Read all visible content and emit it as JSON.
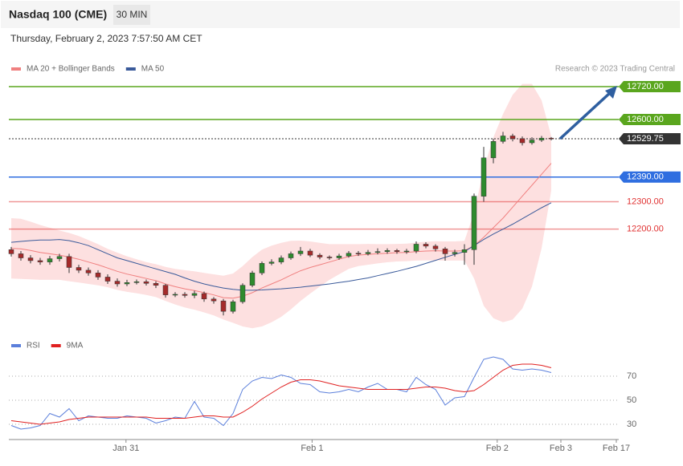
{
  "header": {
    "title": "Nasdaq 100 (CME)",
    "timeframe": "30 MIN",
    "datetime": "Thursday, February 2, 2023 7:57:50 AM CET",
    "copyright": "Research © 2023 Trading Central"
  },
  "chart_data": [
    {
      "type": "candlestick",
      "xlim": [
        -0.25,
        63
      ],
      "ylim": [
        11820,
        12760
      ],
      "candles": {
        "up_color": "#2e8b2e",
        "down_color": "#a52a2a",
        "open": [
          12125,
          12110,
          12095,
          12085,
          12080,
          12092,
          12100,
          12060,
          12050,
          12040,
          12025,
          12010,
          12000,
          12005,
          12008,
          12002,
          11995,
          11960,
          11962,
          11958,
          11965,
          11945,
          11938,
          11900,
          11935,
          11995,
          12040,
          12075,
          12080,
          12095,
          12110,
          12120,
          12105,
          12098,
          12095,
          12102,
          12112,
          12110,
          12115,
          12118,
          12122,
          12118,
          12120,
          12145,
          12138,
          12128,
          12110,
          12115,
          12125,
          12320,
          12460,
          12520,
          12540,
          12530,
          12515,
          12525,
          12532
        ],
        "high": [
          12135,
          12120,
          12105,
          12095,
          12102,
          12110,
          12110,
          12070,
          12060,
          12050,
          12035,
          12020,
          12015,
          12016,
          12016,
          12010,
          12000,
          11970,
          11970,
          11975,
          11972,
          11952,
          11945,
          11942,
          12002,
          12048,
          12082,
          12090,
          12104,
          12118,
          12135,
          12128,
          12112,
          12104,
          12110,
          12120,
          12120,
          12124,
          12130,
          12130,
          12128,
          12128,
          12155,
          12152,
          12145,
          12135,
          12125,
          12145,
          12330,
          12500,
          12530,
          12555,
          12548,
          12538,
          12535,
          12540,
          12536
        ],
        "low": [
          12100,
          12085,
          12075,
          12070,
          12070,
          12082,
          12040,
          12040,
          12030,
          12015,
          12000,
          11990,
          11992,
          11998,
          11994,
          11985,
          11950,
          11952,
          11950,
          11948,
          11935,
          11928,
          11885,
          11892,
          11928,
          11988,
          12032,
          12068,
          12072,
          12088,
          12102,
          12098,
          12090,
          12088,
          12088,
          12096,
          12102,
          12104,
          12108,
          12110,
          12110,
          12110,
          12112,
          12130,
          12118,
          12085,
          12100,
          12070,
          12070,
          12300,
          12440,
          12512,
          12520,
          12505,
          12508,
          12518,
          12524
        ],
        "close": [
          12110,
          12095,
          12085,
          12080,
          12092,
          12100,
          12060,
          12050,
          12040,
          12025,
          12010,
          12000,
          12005,
          12008,
          12002,
          11995,
          11960,
          11962,
          11958,
          11965,
          11945,
          11938,
          11900,
          11935,
          11995,
          12040,
          12075,
          12080,
          12095,
          12110,
          12120,
          12105,
          12098,
          12095,
          12102,
          12112,
          12110,
          12115,
          12118,
          12122,
          12118,
          12120,
          12145,
          12138,
          12128,
          12110,
          12115,
          12125,
          12320,
          12460,
          12520,
          12540,
          12530,
          12515,
          12525,
          12532,
          12530
        ]
      },
      "series": [
        {
          "name": "MA 20 + Bollinger Bands",
          "color": "#f08080",
          "band_color": "#fde0e0",
          "values": [
            12130,
            12128,
            12122,
            12115,
            12110,
            12105,
            12098,
            12090,
            12080,
            12070,
            12058,
            12046,
            12036,
            12028,
            12020,
            12012,
            12000,
            11990,
            11982,
            11976,
            11968,
            11960,
            11950,
            11948,
            11955,
            11968,
            11985,
            12000,
            12015,
            12032,
            12048,
            12060,
            12070,
            12080,
            12090,
            12100,
            12105,
            12108,
            12110,
            12112,
            12114,
            12115,
            12118,
            12120,
            12121,
            12120,
            12120,
            12121,
            12140,
            12170,
            12205,
            12240,
            12280,
            12320,
            12360,
            12400,
            12440
          ],
          "upper": [
            12240,
            12238,
            12227,
            12215,
            12205,
            12195,
            12186,
            12175,
            12160,
            12145,
            12128,
            12114,
            12101,
            12090,
            12080,
            12072,
            12062,
            12055,
            12050,
            12046,
            12040,
            12035,
            12030,
            12038,
            12065,
            12098,
            12125,
            12140,
            12150,
            12157,
            12158,
            12155,
            12150,
            12145,
            12145,
            12145,
            12145,
            12146,
            12145,
            12145,
            12146,
            12147,
            12151,
            12154,
            12156,
            12155,
            12155,
            12157,
            12260,
            12420,
            12535,
            12620,
            12690,
            12730,
            12730,
            12670,
            12540
          ],
          "lower": [
            12020,
            12018,
            12017,
            12015,
            12015,
            12015,
            12010,
            12005,
            12000,
            11995,
            11988,
            11978,
            11971,
            11966,
            11960,
            11952,
            11938,
            11925,
            11914,
            11906,
            11896,
            11885,
            11870,
            11858,
            11845,
            11838,
            11845,
            11860,
            11880,
            11907,
            11938,
            11965,
            11990,
            12015,
            12035,
            12055,
            12065,
            12070,
            12075,
            12079,
            12082,
            12083,
            12085,
            12086,
            12086,
            12085,
            12085,
            12085,
            12020,
            11920,
            11875,
            11860,
            11870,
            11910,
            11990,
            12130,
            12340
          ]
        },
        {
          "name": "MA 50",
          "color": "#3a5a9a",
          "values": [
            12152,
            12155,
            12158,
            12160,
            12160,
            12162,
            12158,
            12150,
            12140,
            12125,
            12110,
            12095,
            12085,
            12075,
            12065,
            12055,
            12045,
            12035,
            12022,
            12010,
            12000,
            11992,
            11985,
            11980,
            11977,
            11977,
            11978,
            11980,
            11982,
            11985,
            11988,
            11992,
            11996,
            12000,
            12005,
            12010,
            12016,
            12022,
            12030,
            12038,
            12046,
            12055,
            12064,
            12075,
            12086,
            12097,
            12108,
            12118,
            12140,
            12162,
            12182,
            12200,
            12218,
            12238,
            12258,
            12278,
            12296
          ]
        }
      ],
      "levels": [
        {
          "value": 12720,
          "label": "12720.00",
          "color": "#5aa61e",
          "label_style": "box",
          "line": "solid"
        },
        {
          "value": 12600,
          "label": "12600.00",
          "color": "#5aa61e",
          "label_style": "box",
          "line": "solid"
        },
        {
          "value": 12529.75,
          "label": "12529.75",
          "color": "#333333",
          "label_style": "box",
          "line": "dotted"
        },
        {
          "value": 12390,
          "label": "12390.00",
          "color": "#2f6ee0",
          "label_style": "box",
          "line": "solid"
        },
        {
          "value": 12300,
          "label": "12300.00",
          "color": "#e03030",
          "label_style": "text",
          "line": "solid"
        },
        {
          "value": 12200,
          "label": "12200.00",
          "color": "#e03030",
          "label_style": "text",
          "line": "solid"
        }
      ]
    },
    {
      "type": "line",
      "xlim": [
        -0.25,
        63
      ],
      "ylim": [
        20,
        87
      ],
      "yticks": [
        30,
        50,
        70
      ],
      "xticks": [
        {
          "value": 11.9,
          "label": "Jan 31"
        },
        {
          "value": 31.2,
          "label": "Feb 1"
        },
        {
          "value": 50.4,
          "label": "Feb 2"
        },
        {
          "value": 57,
          "label": "Feb 3"
        },
        {
          "value": 62.75,
          "label": "Feb 17"
        }
      ],
      "series": [
        {
          "name": "RSI",
          "color": "#5b7fdb",
          "values": [
            29,
            26,
            27,
            29,
            39,
            36,
            43,
            33,
            37,
            36,
            35,
            35,
            37,
            36,
            35,
            31,
            33,
            36,
            35,
            49,
            36,
            35,
            29,
            39,
            59,
            66,
            69,
            68,
            71,
            69,
            64,
            63,
            57,
            56,
            57,
            59,
            57,
            61,
            64,
            59,
            59,
            57,
            69,
            63,
            59,
            46,
            52,
            53,
            69,
            84,
            86,
            84,
            76,
            75,
            76,
            75,
            73
          ]
        },
        {
          "name": "9MA",
          "color": "#e02020",
          "values": [
            33,
            32,
            31,
            30,
            31,
            32,
            34,
            35,
            36,
            36,
            36,
            36,
            36,
            36,
            36,
            35,
            35,
            35,
            35,
            36,
            37,
            37,
            36,
            36,
            40,
            45,
            51,
            56,
            61,
            65,
            67,
            67,
            66,
            64,
            62,
            61,
            60,
            59,
            59,
            59,
            59,
            59,
            60,
            61,
            61,
            60,
            58,
            57,
            58,
            63,
            69,
            75,
            79,
            80,
            80,
            79,
            77
          ]
        }
      ]
    }
  ]
}
